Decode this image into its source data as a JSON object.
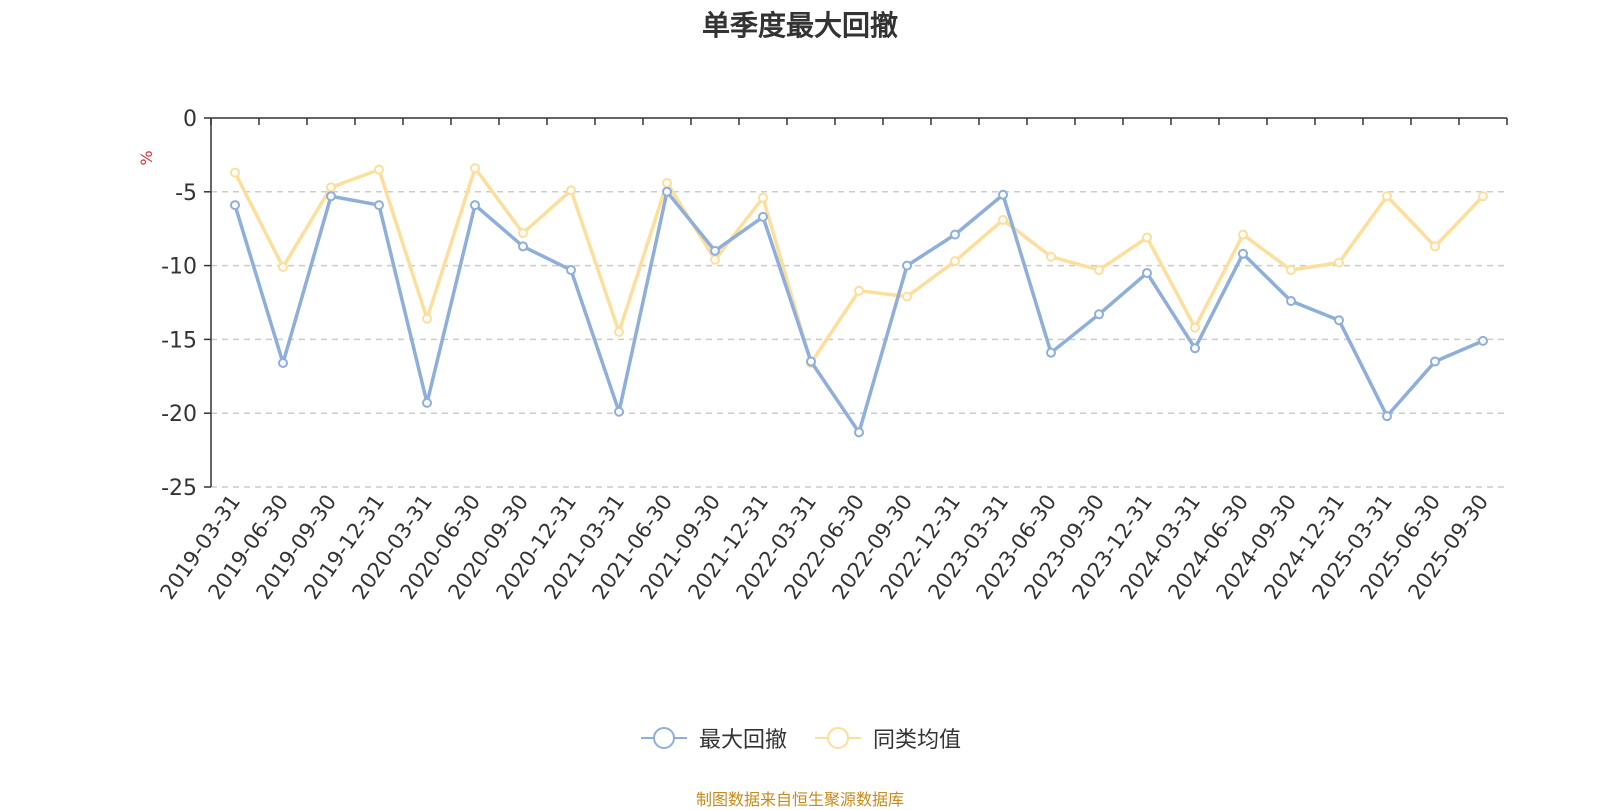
{
  "chart_data": {
    "type": "line",
    "title": "单季度最大回撤",
    "ylabel": "%",
    "ylim": [
      -25,
      0
    ],
    "yticks": [
      0,
      -5,
      -10,
      -15,
      -20,
      -25
    ],
    "grid": true,
    "legend_position": "bottom-center",
    "categories": [
      "2019-03-31",
      "2019-06-30",
      "2019-09-30",
      "2019-12-31",
      "2020-03-31",
      "2020-06-30",
      "2020-09-30",
      "2020-12-31",
      "2021-03-31",
      "2021-06-30",
      "2021-09-30",
      "2021-12-31",
      "2022-03-31",
      "2022-06-30",
      "2022-09-30",
      "2022-12-31",
      "2023-03-31",
      "2023-06-30",
      "2023-09-30",
      "2023-12-31",
      "2024-03-31",
      "2024-06-30",
      "2024-09-30",
      "2024-12-31",
      "2025-03-31",
      "2025-06-30",
      "2025-09-30"
    ],
    "series": [
      {
        "name": "最大回撤",
        "color": "#8eaedb",
        "values": [
          -5.9,
          -16.6,
          -5.3,
          -5.9,
          -19.3,
          -5.9,
          -8.7,
          -10.3,
          -19.9,
          -5.0,
          -9.0,
          -6.7,
          -16.5,
          -21.3,
          -10.0,
          -7.9,
          -5.2,
          -15.9,
          -13.3,
          -10.5,
          -15.6,
          -9.2,
          -12.4,
          -13.7,
          -20.2,
          -16.5,
          -15.1
        ]
      },
      {
        "name": "同类均值",
        "color": "#fddf9b",
        "values": [
          -3.7,
          -10.1,
          -4.7,
          -3.5,
          -13.6,
          -3.4,
          -7.8,
          -4.9,
          -14.5,
          -4.4,
          -9.6,
          -5.4,
          -16.6,
          -11.7,
          -12.1,
          -9.7,
          -6.9,
          -9.4,
          -10.3,
          -8.1,
          -14.2,
          -7.9,
          -10.3,
          -9.8,
          -5.3,
          -8.7,
          -5.3
        ]
      }
    ]
  },
  "source_note": "制图数据来自恒生聚源数据库",
  "colors": {
    "axis": "#333333",
    "grid": "#cccccc",
    "unit": "#e03030",
    "source": "#c88a1a"
  }
}
